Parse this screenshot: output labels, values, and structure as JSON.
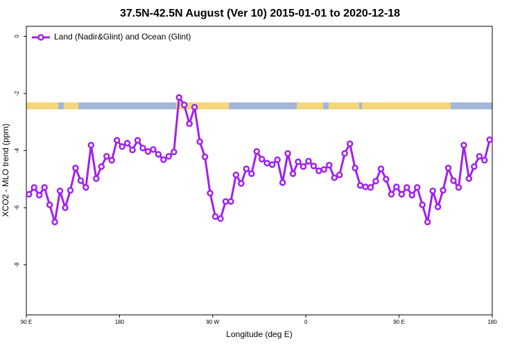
{
  "chart_data": {
    "type": "line",
    "title": "37.5N-42.5N August (Ver 10)   2015-01-01 to 2020-12-18",
    "x_label": "Longitude (deg E)",
    "y_label": "XCO2 - MLO trend (ppm)",
    "xlim": [
      90,
      540
    ],
    "xticks": [
      {
        "value": 90,
        "label": "90 E"
      },
      180,
      {
        "value": 270,
        "label": "90 W"
      },
      {
        "value": 360,
        "label": "0"
      },
      {
        "value": 450,
        "label": "90 E"
      },
      {
        "value": 540,
        "label": "180"
      }
    ],
    "ylim": [
      -9.75,
      0.35
    ],
    "yticks": [
      0,
      -2,
      -4,
      -6,
      -8
    ],
    "legend": "top-left",
    "x": [
      92.5,
      97.5,
      102.5,
      107.5,
      112.5,
      117.5,
      122.5,
      127.5,
      132.5,
      137.5,
      142.5,
      147.5,
      152.5,
      157.5,
      162.5,
      167.5,
      172.5,
      177.5,
      182.5,
      187.5,
      192.5,
      197.5,
      202.5,
      207.5,
      212.5,
      217.5,
      222.5,
      227.5,
      232.5,
      237.5,
      242.5,
      247.5,
      252.5,
      257.5,
      262.5,
      267.5,
      272.5,
      277.5,
      282.5,
      287.5,
      292.5,
      297.5,
      302.5,
      307.5,
      312.5,
      317.5,
      322.5,
      327.5,
      332.5,
      337.5,
      342.5,
      347.5,
      352.5,
      357.5,
      362.5,
      367.5,
      372.5,
      377.5,
      382.5,
      387.5,
      392.5,
      397.5,
      402.5,
      407.5,
      412.5,
      417.5,
      422.5,
      427.5,
      432.5,
      437.5,
      442.5,
      447.5,
      452.5,
      457.5,
      462.5,
      467.5,
      472.5,
      477.5,
      482.5,
      487.5,
      492.5,
      497.5,
      502.5,
      507.5,
      512.5,
      517.5,
      522.5,
      527.5,
      532.5,
      537.5
    ],
    "series": [
      {
        "name": "Land (Nadir&Glint) and Ocean (Glint)",
        "color": "#a020f0",
        "values": [
          -5.53,
          -5.29,
          -5.56,
          -5.29,
          -5.9,
          -6.5,
          -5.41,
          -6.0,
          -5.39,
          -4.61,
          -5.05,
          -5.29,
          -3.81,
          -4.98,
          -4.56,
          -4.2,
          -4.34,
          -3.64,
          -3.86,
          -3.74,
          -3.98,
          -3.64,
          -3.91,
          -4.03,
          -3.96,
          -4.13,
          -4.32,
          -4.2,
          -4.05,
          -2.14,
          -2.4,
          -3.06,
          -2.48,
          -3.69,
          -4.22,
          -5.49,
          -6.31,
          -6.38,
          -5.78,
          -5.78,
          -4.85,
          -5.15,
          -4.64,
          -4.81,
          -4.03,
          -4.3,
          -4.44,
          -4.49,
          -4.32,
          -5.12,
          -4.1,
          -4.81,
          -4.39,
          -4.56,
          -4.37,
          -4.54,
          -4.71,
          -4.66,
          -4.51,
          -4.95,
          -4.85,
          -4.1,
          -3.76,
          -4.61,
          -5.22,
          -5.27,
          -5.29,
          -5.07,
          -4.64,
          -5.0,
          -5.53,
          -5.27,
          -5.53,
          -5.29,
          -5.56,
          -5.29,
          -5.9,
          -6.5,
          -5.41,
          -5.97,
          -5.39,
          -4.61,
          -5.05,
          -5.29,
          -3.81,
          -4.98,
          -4.56,
          -4.2,
          -4.34,
          -3.62
        ]
      }
    ]
  }
}
